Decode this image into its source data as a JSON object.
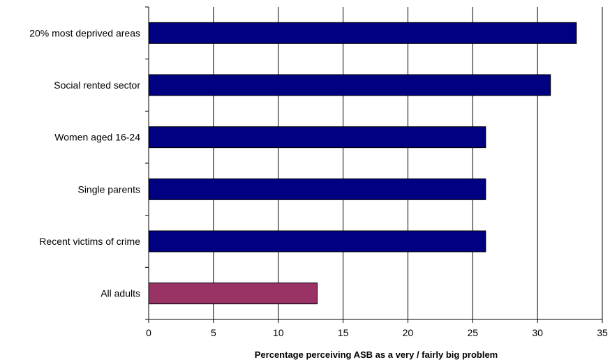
{
  "chart_data": {
    "type": "bar",
    "orientation": "horizontal",
    "categories": [
      "20% most deprived areas",
      "Social rented sector",
      "Women aged 16-24",
      "Single parents",
      "Recent victims of crime",
      "All adults"
    ],
    "values": [
      33,
      31,
      26,
      26,
      26,
      13
    ],
    "bar_colors": [
      "#000080",
      "#000080",
      "#000080",
      "#000080",
      "#000080",
      "#993366"
    ],
    "title": "",
    "xlabel": "Percentage perceiving ASB as a very / fairly big problem",
    "ylabel": "",
    "xlim": [
      0,
      35
    ],
    "xticks": [
      "0",
      "5",
      "10",
      "15",
      "20",
      "25",
      "30",
      "35"
    ],
    "grid": "vertical gridlines",
    "legend": "none"
  }
}
